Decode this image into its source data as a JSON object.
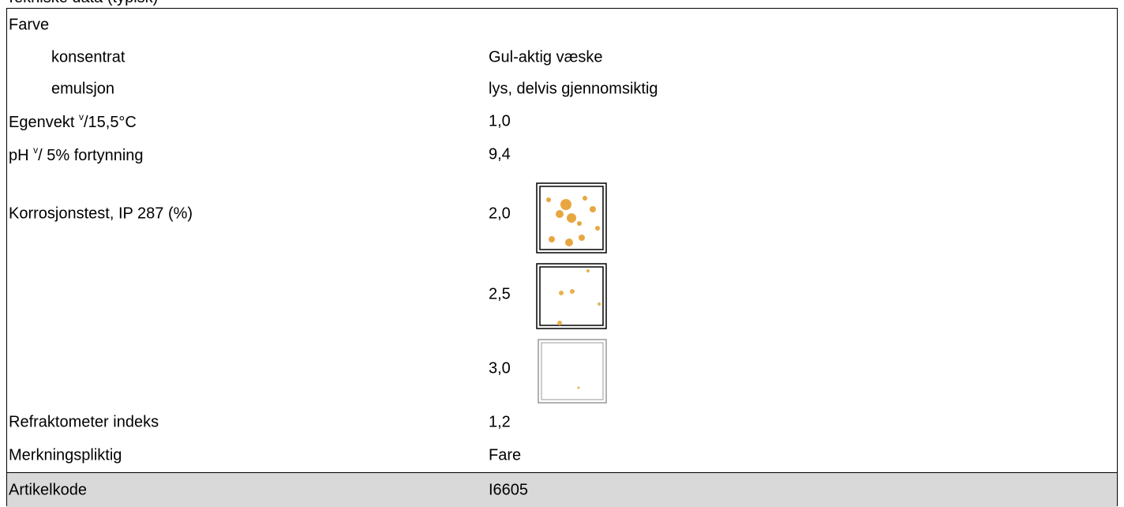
{
  "header": {
    "title": "Tekniske data (typisk)"
  },
  "table": {
    "rows": [
      {
        "label": "Farve"
      },
      {
        "label": "konsentrat",
        "value": "Gul-aktig væske"
      },
      {
        "label": "emulsjon",
        "value": "lys, delvis gjennomsiktig"
      },
      {
        "label": "Egenvekt ",
        "sup": "v",
        "suffix": "/15,5°C",
        "value": "1,0"
      },
      {
        "label": "pH ",
        "sup": "v",
        "suffix": "/ 5% fortynning",
        "value": "9,4"
      },
      {
        "label": "Korrosjonstest, IP 287 (%)",
        "value": "2,0"
      },
      {
        "value": "2,5"
      },
      {
        "value": "3,0"
      },
      {
        "label": "Refraktometer indeks",
        "value": "1,2"
      },
      {
        "label": "Merkningspliktig",
        "value": "Fare"
      },
      {
        "label": "Artikelkode",
        "value": "I6605"
      }
    ]
  }
}
